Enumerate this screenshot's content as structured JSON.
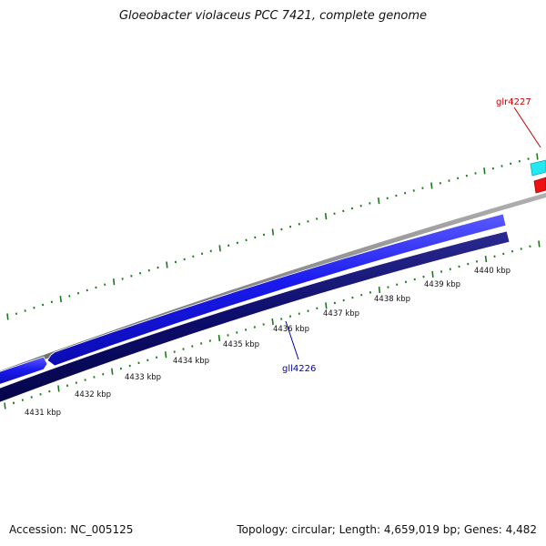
{
  "title": "Gloeobacter violaceus PCC 7421, complete genome",
  "footer": {
    "accession": "Accession: NC_005125",
    "summary": "Topology: circular; Length: 4,659,019 bp; Genes: 4,482"
  },
  "scale": {
    "unit": "kbp",
    "ticks": [
      {
        "label": "4431 kbp"
      },
      {
        "label": "4432 kbp"
      },
      {
        "label": "4433 kbp"
      },
      {
        "label": "4434 kbp"
      },
      {
        "label": "4435 kbp"
      },
      {
        "label": "4436 kbp"
      },
      {
        "label": "4437 kbp"
      },
      {
        "label": "4438 kbp"
      },
      {
        "label": "4439 kbp"
      },
      {
        "label": "4440 kbp"
      }
    ]
  },
  "genes": [
    {
      "id": "glr4227",
      "label": "glr4227",
      "label_color": "#cc0000",
      "strand": "+"
    },
    {
      "id": "gll4226",
      "label": "gll4226",
      "label_color": "#0000aa",
      "strand": "-"
    }
  ],
  "colors": {
    "backbone": "#8a8a8a",
    "tick_mark": "#1a7a1a",
    "gene_forward_blue": "#1a1aee",
    "gene_reverse_navy": "#0d0d6b",
    "gene_cyan": "#22e8f0",
    "gene_red": "#ee1111"
  }
}
